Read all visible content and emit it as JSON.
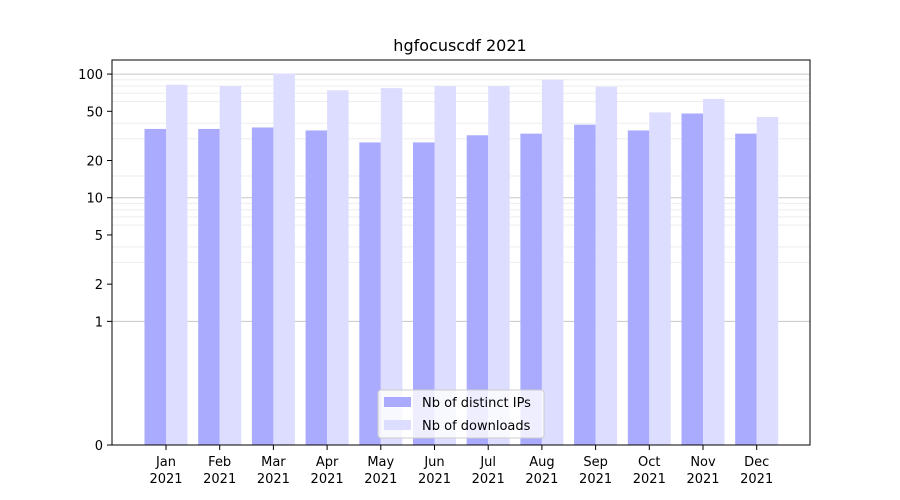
{
  "chart_data": {
    "type": "bar",
    "title": "hgfocuscdf 2021",
    "xlabel": "",
    "ylabel": "",
    "yscale": "symlog",
    "ylim": [
      0,
      130
    ],
    "grid": true,
    "legend_position": "bottom-center",
    "categories": [
      [
        "Jan",
        "2021"
      ],
      [
        "Feb",
        "2021"
      ],
      [
        "Mar",
        "2021"
      ],
      [
        "Apr",
        "2021"
      ],
      [
        "May",
        "2021"
      ],
      [
        "Jun",
        "2021"
      ],
      [
        "Jul",
        "2021"
      ],
      [
        "Aug",
        "2021"
      ],
      [
        "Sep",
        "2021"
      ],
      [
        "Oct",
        "2021"
      ],
      [
        "Nov",
        "2021"
      ],
      [
        "Dec",
        "2021"
      ]
    ],
    "yticks": [
      {
        "value": 0,
        "label": "0"
      },
      {
        "value": 1,
        "label": "1"
      },
      {
        "value": 2,
        "label": "2"
      },
      {
        "value": 5,
        "label": "5"
      },
      {
        "value": 10,
        "label": "10"
      },
      {
        "value": 20,
        "label": "20"
      },
      {
        "value": 50,
        "label": "50"
      },
      {
        "value": 100,
        "label": "100"
      }
    ],
    "series": [
      {
        "name": "Nb of distinct IPs",
        "color": "#aaaaff",
        "values": [
          36,
          36,
          37,
          35,
          28,
          28,
          32,
          33,
          39,
          35,
          48,
          33
        ]
      },
      {
        "name": "Nb of downloads",
        "color": "#ddddff",
        "values": [
          82,
          80,
          101,
          74,
          77,
          80,
          80,
          90,
          79,
          49,
          63,
          45
        ]
      }
    ]
  }
}
